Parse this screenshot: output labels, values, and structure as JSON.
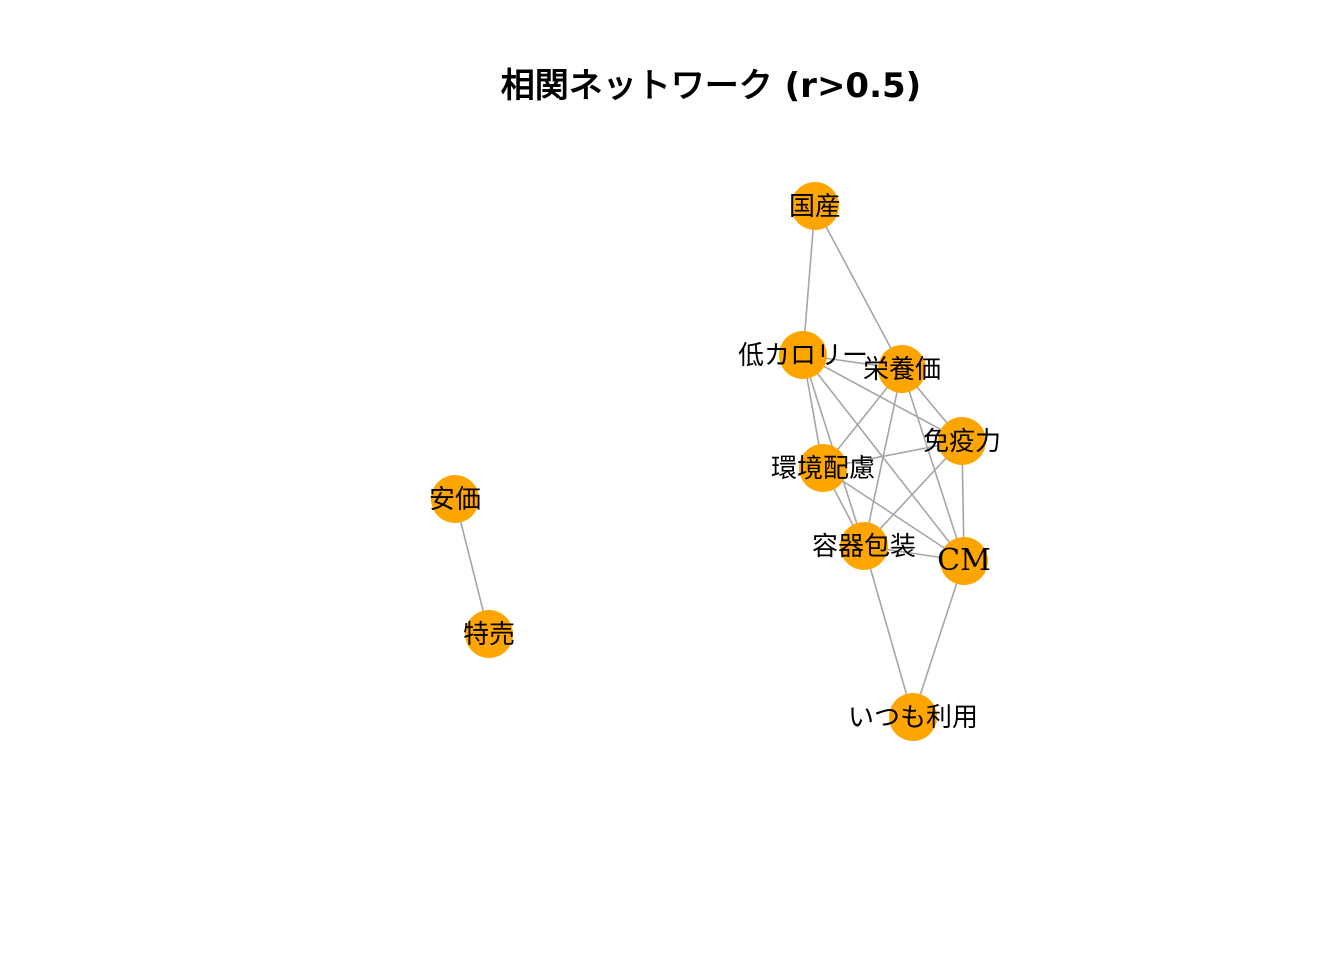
{
  "title": "相関ネットワーク (r>0.5)",
  "style": {
    "node_color": "#FFA500",
    "edge_color": "#A6A6A6",
    "background": "#FFFFFF"
  },
  "nodes": [
    {
      "id": "kokusan",
      "label": "国産"
    },
    {
      "id": "teicalorie",
      "label": "低カロリー"
    },
    {
      "id": "eiyouka",
      "label": "栄養価"
    },
    {
      "id": "menekiryoku",
      "label": "免疫力"
    },
    {
      "id": "kankyou",
      "label": "環境配慮"
    },
    {
      "id": "youki",
      "label": "容器包装"
    },
    {
      "id": "cm",
      "label": "CM"
    },
    {
      "id": "itsumo",
      "label": "いつも利用"
    },
    {
      "id": "yasune",
      "label": "安価"
    },
    {
      "id": "tokubai",
      "label": "特売"
    }
  ],
  "edges": [
    [
      "kokusan",
      "teicalorie"
    ],
    [
      "kokusan",
      "eiyouka"
    ],
    [
      "teicalorie",
      "eiyouka"
    ],
    [
      "teicalorie",
      "menekiryoku"
    ],
    [
      "teicalorie",
      "kankyou"
    ],
    [
      "teicalorie",
      "youki"
    ],
    [
      "teicalorie",
      "cm"
    ],
    [
      "eiyouka",
      "menekiryoku"
    ],
    [
      "eiyouka",
      "kankyou"
    ],
    [
      "eiyouka",
      "youki"
    ],
    [
      "eiyouka",
      "cm"
    ],
    [
      "menekiryoku",
      "kankyou"
    ],
    [
      "menekiryoku",
      "youki"
    ],
    [
      "menekiryoku",
      "cm"
    ],
    [
      "kankyou",
      "youki"
    ],
    [
      "kankyou",
      "cm"
    ],
    [
      "youki",
      "cm"
    ],
    [
      "youki",
      "itsumo"
    ],
    [
      "cm",
      "itsumo"
    ],
    [
      "yasune",
      "tokubai"
    ]
  ]
}
